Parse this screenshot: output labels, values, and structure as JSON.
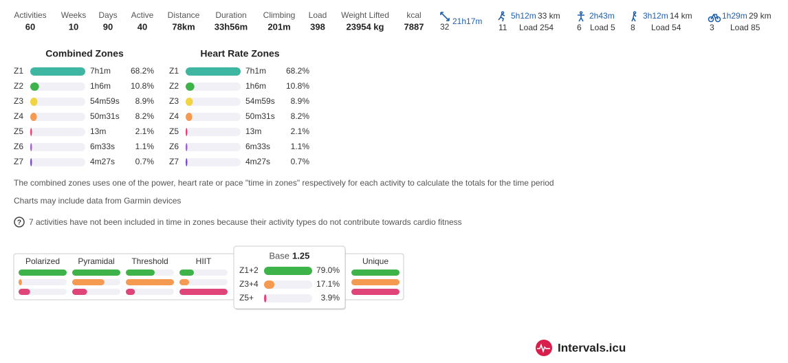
{
  "stats": [
    {
      "label": "Activities",
      "value": "60"
    },
    {
      "label": "Weeks",
      "value": "10"
    },
    {
      "label": "Days",
      "value": "90"
    },
    {
      "label": "Active",
      "value": "40"
    },
    {
      "label": "Distance",
      "value": "78km"
    },
    {
      "label": "Duration",
      "value": "33h56m"
    },
    {
      "label": "Climbing",
      "value": "201m"
    },
    {
      "label": "Load",
      "value": "398"
    },
    {
      "label": "Weight Lifted",
      "value": "23954 kg"
    },
    {
      "label": "kcal",
      "value": "7887"
    }
  ],
  "sports": [
    {
      "time": "21h17m",
      "count": "32"
    },
    {
      "time": "5h12m",
      "distance": "33 km",
      "count": "11",
      "load": "Load 254"
    },
    {
      "time": "2h43m",
      "count": "6",
      "load": "Load 5"
    },
    {
      "time": "3h12m",
      "distance": "14 km",
      "count": "8",
      "load": "Load 54"
    },
    {
      "time": "1h29m",
      "distance": "29 km",
      "count": "3",
      "load": "Load 85"
    }
  ],
  "zone_tables": [
    {
      "title": "Combined Zones",
      "rows": [
        {
          "zone": "Z1",
          "time": "7h1m",
          "pct": 68.2,
          "pct_label": "68.2%"
        },
        {
          "zone": "Z2",
          "time": "1h6m",
          "pct": 10.8,
          "pct_label": "10.8%"
        },
        {
          "zone": "Z3",
          "time": "54m59s",
          "pct": 8.9,
          "pct_label": "8.9%"
        },
        {
          "zone": "Z4",
          "time": "50m31s",
          "pct": 8.2,
          "pct_label": "8.2%"
        },
        {
          "zone": "Z5",
          "time": "13m",
          "pct": 2.1,
          "pct_label": "2.1%"
        },
        {
          "zone": "Z6",
          "time": "6m33s",
          "pct": 1.1,
          "pct_label": "1.1%"
        },
        {
          "zone": "Z7",
          "time": "4m27s",
          "pct": 0.7,
          "pct_label": "0.7%"
        }
      ]
    },
    {
      "title": "Heart Rate Zones",
      "rows": [
        {
          "zone": "Z1",
          "time": "7h1m",
          "pct": 68.2,
          "pct_label": "68.2%"
        },
        {
          "zone": "Z2",
          "time": "1h6m",
          "pct": 10.8,
          "pct_label": "10.8%"
        },
        {
          "zone": "Z3",
          "time": "54m59s",
          "pct": 8.9,
          "pct_label": "8.9%"
        },
        {
          "zone": "Z4",
          "time": "50m31s",
          "pct": 8.2,
          "pct_label": "8.2%"
        },
        {
          "zone": "Z5",
          "time": "13m",
          "pct": 2.1,
          "pct_label": "2.1%"
        },
        {
          "zone": "Z6",
          "time": "6m33s",
          "pct": 1.1,
          "pct_label": "1.1%"
        },
        {
          "zone": "Z7",
          "time": "4m27s",
          "pct": 0.7,
          "pct_label": "0.7%"
        }
      ]
    }
  ],
  "zone_colors": [
    "#3fb6a2",
    "#3db34a",
    "#f2d342",
    "#f59b51",
    "#e83e6a",
    "#a35bd0",
    "#7a4bc4"
  ],
  "notes": [
    "The combined zones uses one of the power, heart rate or pace \"time in zones\" respectively for each activity to calculate the totals for the time period",
    "Charts may include data from Garmin devices",
    "7 activities have not been included in time in zones because their activity types do not contribute towards cardio fitness"
  ],
  "distribution": {
    "colors": [
      "#3db34a",
      "#f59b51",
      "#e0457a"
    ],
    "columns": [
      {
        "name": "Polarized",
        "bars": [
          100,
          7,
          24
        ]
      },
      {
        "name": "Pyramidal",
        "bars": [
          100,
          67,
          31
        ]
      },
      {
        "name": "Threshold",
        "bars": [
          60,
          100,
          19
        ]
      },
      {
        "name": "HIIT",
        "bars": [
          30,
          20,
          100
        ]
      },
      {
        "name": "Unique",
        "bars": [
          100,
          100,
          100
        ]
      }
    ],
    "popup": {
      "name": "Base",
      "score": "1.25",
      "rows": [
        {
          "zone": "Z1+2",
          "pct": 79.0,
          "pct_label": "79.0%"
        },
        {
          "zone": "Z3+4",
          "pct": 17.1,
          "pct_label": "17.1%"
        },
        {
          "zone": "Z5+",
          "pct": 3.9,
          "pct_label": "3.9%"
        }
      ]
    }
  },
  "brand": "Intervals.icu"
}
